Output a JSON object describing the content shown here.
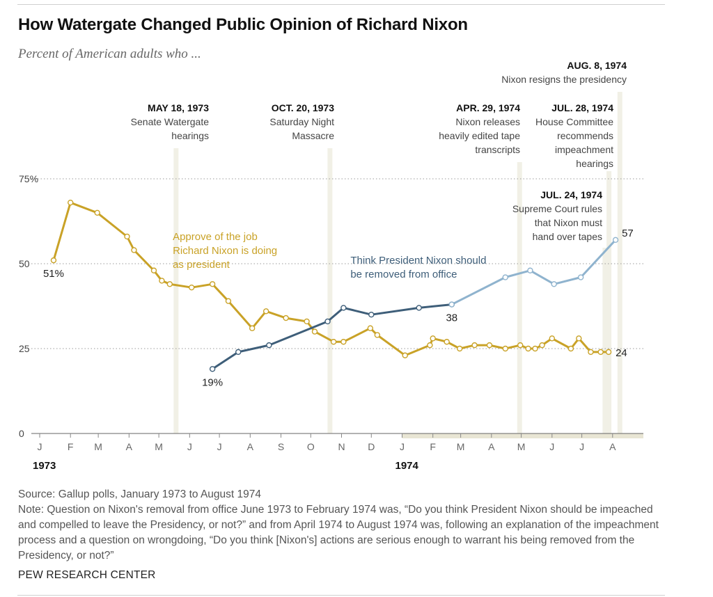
{
  "header": {
    "title": "How Watergate Changed Public Opinion of Richard Nixon",
    "subtitle": "Percent of American adults who ..."
  },
  "footer": {
    "source": "Source: Gallup polls, January 1973 to August 1974",
    "note": "Note: Question on Nixon's removal from office June 1973 to February 1974 was, “Do you think President Nixon should be impeached and compelled to leave the Presidency, or not?” and from April 1974 to August 1974 was, following an explanation of the impeachment process and a question on wrongdoing, “Do you think [Nixon's] actions are serious enough to warrant his being removed from the Presidency, or not?”",
    "credit": "PEW RESEARCH CENTER"
  },
  "colors": {
    "approve": "#C9A227",
    "remove_early": "#3E5E79",
    "remove_late": "#8FB3CE",
    "event_band": "#F1F0E6",
    "gridline": "#9A9A9A",
    "year_1974_band": "#E8E5D4"
  },
  "chart_data": {
    "type": "line",
    "y_unit": "percent",
    "ylim": [
      0,
      75
    ],
    "yticks": [
      {
        "value": 0,
        "label": "0"
      },
      {
        "value": 25,
        "label": "25"
      },
      {
        "value": 50,
        "label": "50"
      },
      {
        "value": 75,
        "label": "75%"
      }
    ],
    "grid": "dotted horizontal at 25, 50, 75",
    "xlim": [
      "1973-01-01",
      "1974-09-01"
    ],
    "month_ticks": [
      "J",
      "F",
      "M",
      "A",
      "M",
      "J",
      "J",
      "A",
      "S",
      "O",
      "N",
      "D",
      "J",
      "F",
      "M",
      "A",
      "M",
      "J",
      "J",
      "A"
    ],
    "year_labels": [
      {
        "label": "1973",
        "date": "1973-01-01"
      },
      {
        "label": "1974",
        "date": "1974-01-01"
      }
    ],
    "series": [
      {
        "name": "Approve of the job Richard Nixon is doing as president",
        "color": "approve",
        "points": [
          {
            "x": "1973-01-15",
            "y": 51
          },
          {
            "x": "1973-02-01",
            "y": 68
          },
          {
            "x": "1973-02-28",
            "y": 65
          },
          {
            "x": "1973-03-30",
            "y": 58
          },
          {
            "x": "1973-04-06",
            "y": 54
          },
          {
            "x": "1973-04-26",
            "y": 48
          },
          {
            "x": "1973-05-04",
            "y": 45
          },
          {
            "x": "1973-05-12",
            "y": 44
          },
          {
            "x": "1973-06-03",
            "y": 43
          },
          {
            "x": "1973-06-24",
            "y": 44
          },
          {
            "x": "1973-07-10",
            "y": 39
          },
          {
            "x": "1973-08-03",
            "y": 31
          },
          {
            "x": "1973-08-17",
            "y": 36
          },
          {
            "x": "1973-09-06",
            "y": 34
          },
          {
            "x": "1973-09-27",
            "y": 33
          },
          {
            "x": "1973-10-05",
            "y": 30
          },
          {
            "x": "1973-10-24",
            "y": 27
          },
          {
            "x": "1973-11-03",
            "y": 27
          },
          {
            "x": "1973-11-30",
            "y": 31
          },
          {
            "x": "1973-12-07",
            "y": 29
          },
          {
            "x": "1974-01-04",
            "y": 23
          },
          {
            "x": "1974-01-29",
            "y": 26
          },
          {
            "x": "1974-02-01",
            "y": 28
          },
          {
            "x": "1974-02-15",
            "y": 27
          },
          {
            "x": "1974-02-28",
            "y": 25
          },
          {
            "x": "1974-03-15",
            "y": 26
          },
          {
            "x": "1974-03-30",
            "y": 26
          },
          {
            "x": "1974-04-15",
            "y": 25
          },
          {
            "x": "1974-04-30",
            "y": 26
          },
          {
            "x": "1974-05-08",
            "y": 25
          },
          {
            "x": "1974-05-15",
            "y": 25
          },
          {
            "x": "1974-05-22",
            "y": 26
          },
          {
            "x": "1974-06-01",
            "y": 28
          },
          {
            "x": "1974-06-20",
            "y": 25
          },
          {
            "x": "1974-06-28",
            "y": 28
          },
          {
            "x": "1974-07-10",
            "y": 24
          },
          {
            "x": "1974-07-20",
            "y": 24
          },
          {
            "x": "1974-07-28",
            "y": 24
          }
        ]
      },
      {
        "name": "Think President Nixon should be removed from office",
        "segments": [
          {
            "color": "remove_early",
            "question": "impeached and compelled to leave (June 1973 – Feb. 1974)",
            "points": [
              {
                "x": "1973-06-24",
                "y": 19
              },
              {
                "x": "1973-07-20",
                "y": 24
              },
              {
                "x": "1973-08-20",
                "y": 26
              },
              {
                "x": "1973-10-18",
                "y": 33
              },
              {
                "x": "1973-11-03",
                "y": 37
              },
              {
                "x": "1973-12-01",
                "y": 35
              },
              {
                "x": "1974-01-18",
                "y": 37
              },
              {
                "x": "1974-02-20",
                "y": 38
              }
            ]
          },
          {
            "color": "remove_late",
            "question": "actions serious enough to warrant removal (Apr. – Aug. 1974)",
            "points": [
              {
                "x": "1974-02-20",
                "y": 38
              },
              {
                "x": "1974-04-15",
                "y": 46
              },
              {
                "x": "1974-05-10",
                "y": 48
              },
              {
                "x": "1974-06-03",
                "y": 44
              },
              {
                "x": "1974-06-30",
                "y": 46
              },
              {
                "x": "1974-08-04",
                "y": 57
              }
            ]
          }
        ]
      }
    ],
    "data_labels": [
      {
        "text": "51%",
        "x": "1973-01-15",
        "y": 51,
        "pos": "below"
      },
      {
        "text": "19%",
        "x": "1973-06-24",
        "y": 19,
        "pos": "below"
      },
      {
        "text": "38",
        "x": "1974-02-20",
        "y": 38,
        "pos": "below"
      },
      {
        "text": "24",
        "x": "1974-07-28",
        "y": 24,
        "pos": "right"
      },
      {
        "text": "57",
        "x": "1974-08-04",
        "y": 57,
        "pos": "upper-right"
      }
    ],
    "series_labels": [
      {
        "lines": [
          "Approve of the job",
          "Richard Nixon is doing",
          "as president"
        ],
        "color": "approve",
        "x": "1973-05-15",
        "y": 57
      },
      {
        "lines": [
          "Think President Nixon should",
          "be removed from office"
        ],
        "color": "remove_early",
        "x": "1973-11-10",
        "y": 50
      }
    ],
    "events": [
      {
        "date": "1973-05-18",
        "date_label": "MAY 18, 1973",
        "lines": [
          "Senate Watergate",
          "hearings"
        ],
        "anchor": "right"
      },
      {
        "date": "1973-10-20",
        "date_label": "OCT. 20, 1973",
        "lines": [
          "Saturday Night",
          "Massacre"
        ],
        "anchor": "right"
      },
      {
        "date": "1974-04-29",
        "date_label": "APR. 29, 1974",
        "lines": [
          "Nixon releases",
          "heavily edited tape",
          "transcripts"
        ],
        "anchor": "right"
      },
      {
        "date": "1974-07-24",
        "date_label": "JUL. 24, 1974",
        "lines": [
          "Supreme Court rules",
          "that Nixon must",
          "hand over tapes"
        ],
        "anchor": "right"
      },
      {
        "date": "1974-07-28",
        "date_label": "JUL. 28, 1974",
        "lines": [
          "House Committee",
          "recommends",
          "impeachment",
          "hearings"
        ],
        "anchor": "right"
      },
      {
        "date": "1974-08-08",
        "date_label": "AUG. 8, 1974",
        "lines": [
          "Nixon resigns the presidency"
        ],
        "anchor": "right"
      }
    ]
  }
}
